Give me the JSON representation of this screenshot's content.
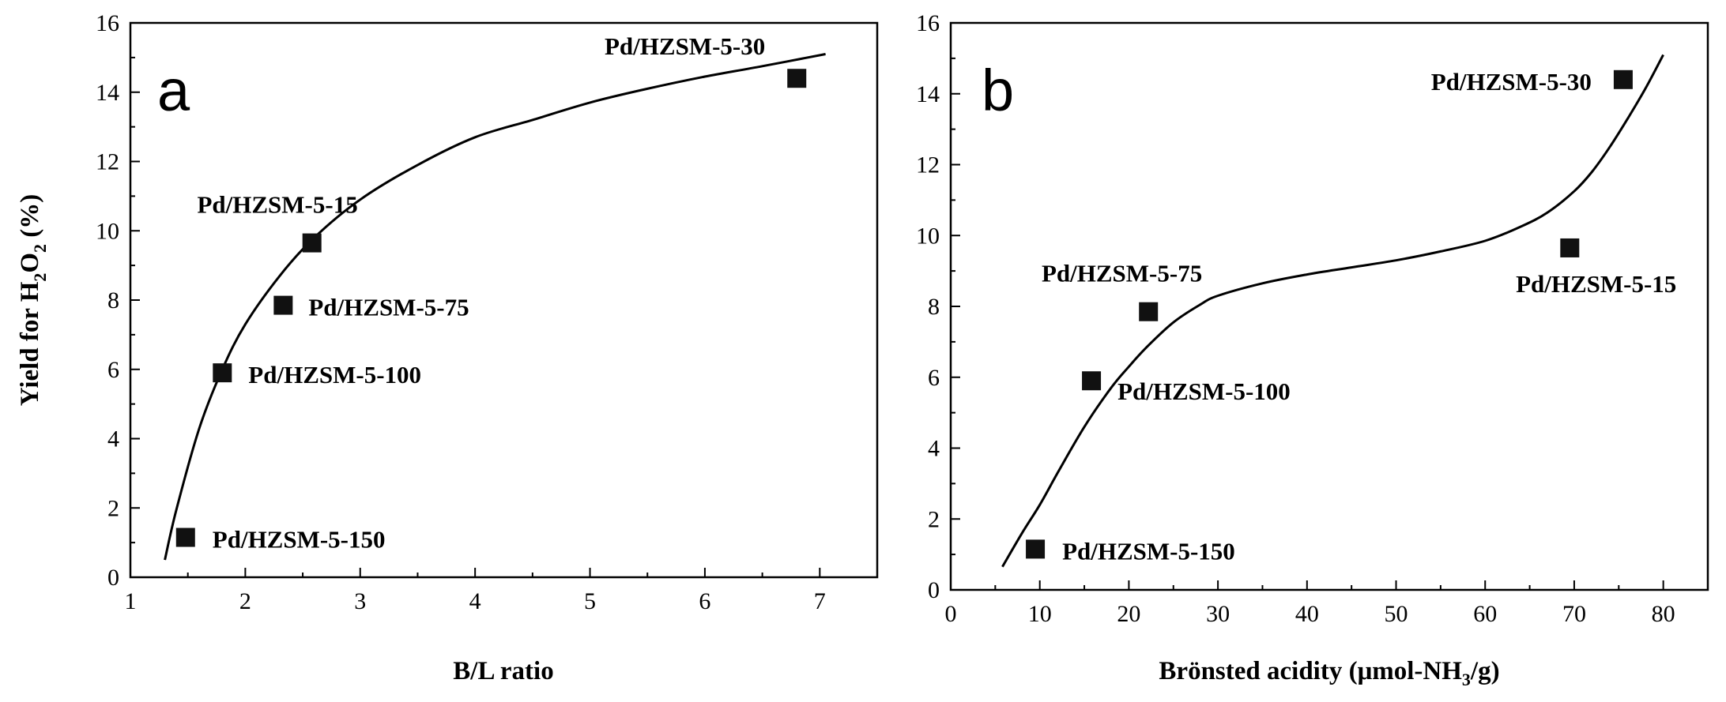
{
  "figure": {
    "y_axis_title_parts": [
      "Yield for H",
      "2",
      "O",
      "2",
      " (%)"
    ]
  },
  "chart_data": [
    {
      "type": "scatter",
      "panel_label": "a",
      "xlabel": "B/L ratio",
      "ylabel": "Yield for H2O2 (%)",
      "xlim": [
        1,
        7.5
      ],
      "ylim": [
        0,
        16
      ],
      "xticks": [
        1,
        2,
        3,
        4,
        5,
        6,
        7
      ],
      "yticks": [
        0,
        2,
        4,
        6,
        8,
        10,
        12,
        14,
        16
      ],
      "grid": false,
      "marker": "square",
      "marker_color": "#111111",
      "curve_color": "#000000",
      "points": [
        {
          "label": "Pd/HZSM-5-150",
          "x": 1.48,
          "y": 1.15
        },
        {
          "label": "Pd/HZSM-5-100",
          "x": 1.8,
          "y": 5.9
        },
        {
          "label": "Pd/HZSM-5-75",
          "x": 2.33,
          "y": 7.85
        },
        {
          "label": "Pd/HZSM-5-15",
          "x": 2.58,
          "y": 9.65
        },
        {
          "label": "Pd/HZSM-5-30",
          "x": 6.8,
          "y": 14.4
        }
      ],
      "fit_curve": {
        "type": "logarithmic",
        "x": [
          1.3,
          1.4,
          1.6,
          1.8,
          2.0,
          2.3,
          2.6,
          3.0,
          3.5,
          4.0,
          4.5,
          5.0,
          5.5,
          6.0,
          6.5,
          7.05
        ],
        "y": [
          0.5,
          1.95,
          4.3,
          6.0,
          7.3,
          8.7,
          9.8,
          10.9,
          11.9,
          12.7,
          13.2,
          13.7,
          14.1,
          14.45,
          14.75,
          15.1
        ]
      }
    },
    {
      "type": "scatter",
      "panel_label": "b",
      "xlabel_parts": [
        "Brönsted acidity (μmol-NH",
        "3",
        "/g)"
      ],
      "xlabel": "Brönsted acidity (μmol-NH3/g)",
      "ylabel": "",
      "xlim": [
        0,
        85
      ],
      "ylim": [
        0,
        16
      ],
      "xticks": [
        0,
        10,
        20,
        30,
        40,
        50,
        60,
        70,
        80
      ],
      "yticks": [
        0,
        2,
        4,
        6,
        8,
        10,
        12,
        14,
        16
      ],
      "grid": false,
      "marker": "square",
      "marker_color": "#111111",
      "curve_color": "#000000",
      "points": [
        {
          "label": "Pd/HZSM-5-150",
          "x": 9.5,
          "y": 1.15
        },
        {
          "label": "Pd/HZSM-5-100",
          "x": 15.8,
          "y": 5.9
        },
        {
          "label": "Pd/HZSM-5-75",
          "x": 22.2,
          "y": 7.85
        },
        {
          "label": "Pd/HZSM-5-15",
          "x": 69.5,
          "y": 9.65
        },
        {
          "label": "Pd/HZSM-5-30",
          "x": 75.5,
          "y": 14.4
        }
      ],
      "fit_curve": {
        "type": "cubic",
        "x": [
          5.8,
          8,
          10,
          12,
          15,
          18,
          20,
          22,
          25,
          28,
          30,
          35,
          40,
          45,
          50,
          55,
          60,
          64,
          67,
          70,
          72,
          74,
          76,
          78,
          80
        ],
        "y": [
          0.65,
          1.6,
          2.4,
          3.3,
          4.6,
          5.7,
          6.3,
          6.85,
          7.55,
          8.05,
          8.3,
          8.65,
          8.9,
          9.1,
          9.3,
          9.55,
          9.85,
          10.25,
          10.65,
          11.25,
          11.8,
          12.5,
          13.3,
          14.15,
          15.1
        ]
      }
    }
  ]
}
